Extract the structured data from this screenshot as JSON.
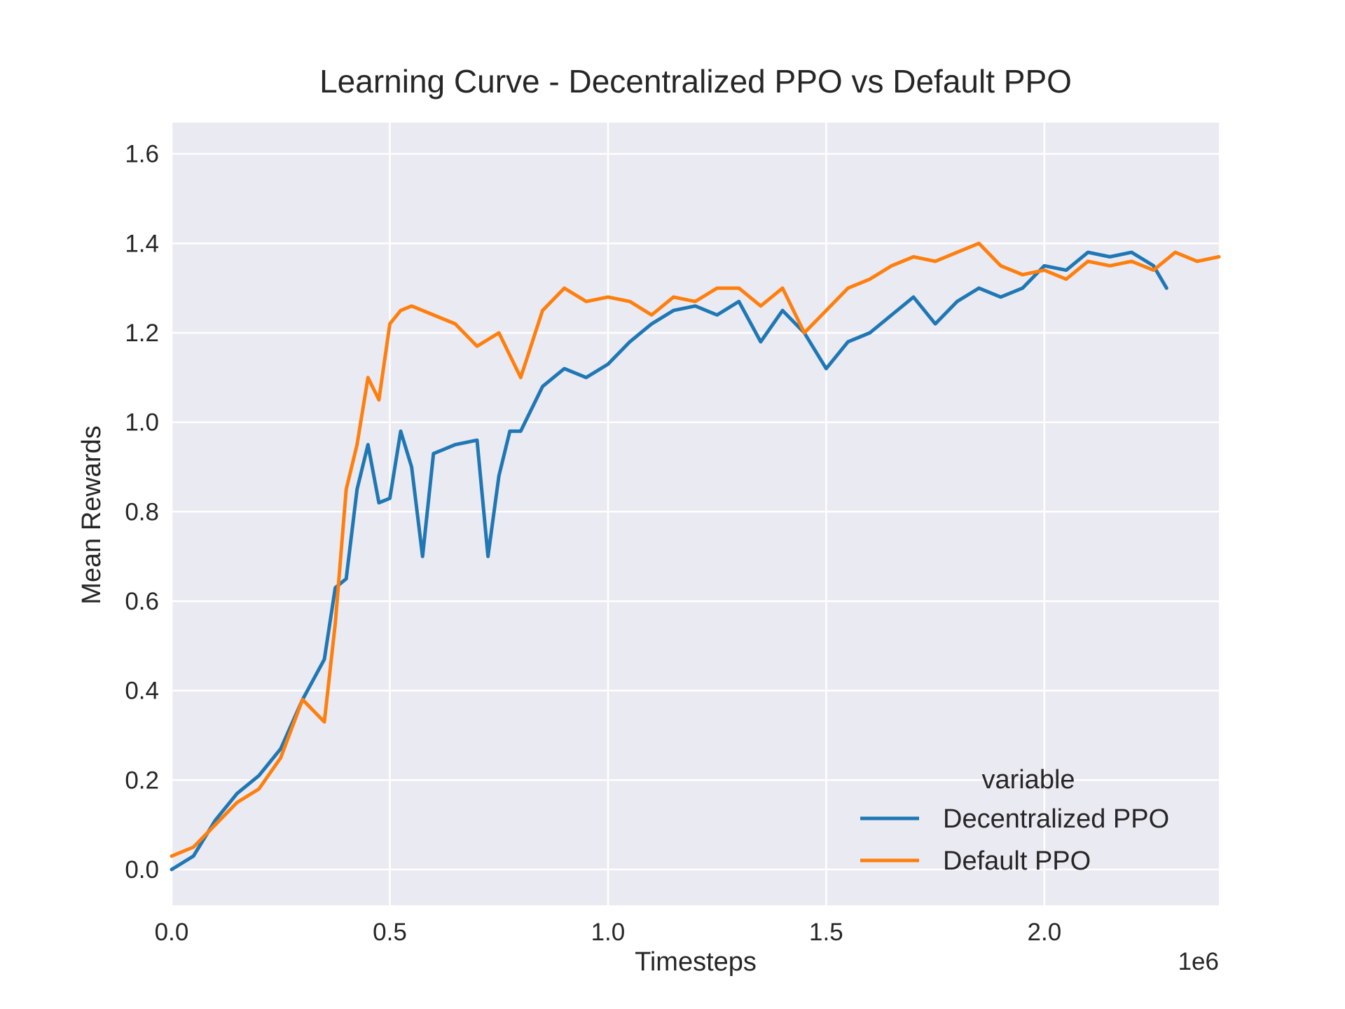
{
  "chart_data": {
    "type": "line",
    "title": "Learning Curve - Decentralized PPO vs Default PPO",
    "xlabel": "Timesteps",
    "ylabel": "Mean Rewards",
    "x_offset_label": "1e6",
    "x_scale": 1000000,
    "xlim": [
      0,
      2400000
    ],
    "ylim": [
      -0.08,
      1.67
    ],
    "x_ticks": [
      0,
      500000,
      1000000,
      1500000,
      2000000
    ],
    "x_tick_labels": [
      "0.0",
      "0.5",
      "1.0",
      "1.5",
      "2.0"
    ],
    "y_ticks": [
      0.0,
      0.2,
      0.4,
      0.6,
      0.8,
      1.0,
      1.2,
      1.4,
      1.6
    ],
    "y_tick_labels": [
      "0.0",
      "0.2",
      "0.4",
      "0.6",
      "0.8",
      "1.0",
      "1.2",
      "1.4",
      "1.6"
    ],
    "grid": true,
    "legend": {
      "title": "variable",
      "placement": "lower-right"
    },
    "colors": {
      "background": "#eaeaf2",
      "grid": "#ffffff"
    },
    "series": [
      {
        "name": "Decentralized PPO",
        "color": "#1f77b4",
        "x": [
          0,
          50000,
          100000,
          150000,
          200000,
          250000,
          300000,
          350000,
          375000,
          400000,
          425000,
          450000,
          475000,
          500000,
          525000,
          550000,
          575000,
          600000,
          650000,
          700000,
          725000,
          750000,
          775000,
          800000,
          850000,
          900000,
          950000,
          1000000,
          1050000,
          1100000,
          1150000,
          1200000,
          1250000,
          1300000,
          1350000,
          1400000,
          1450000,
          1500000,
          1550000,
          1600000,
          1650000,
          1700000,
          1750000,
          1800000,
          1850000,
          1900000,
          1950000,
          2000000,
          2050000,
          2100000,
          2150000,
          2200000,
          2250000,
          2280000
        ],
        "y": [
          0.0,
          0.03,
          0.11,
          0.17,
          0.21,
          0.27,
          0.38,
          0.47,
          0.63,
          0.65,
          0.85,
          0.95,
          0.82,
          0.83,
          0.98,
          0.9,
          0.7,
          0.93,
          0.95,
          0.96,
          0.7,
          0.88,
          0.98,
          0.98,
          1.08,
          1.12,
          1.1,
          1.13,
          1.18,
          1.22,
          1.25,
          1.26,
          1.24,
          1.27,
          1.18,
          1.25,
          1.2,
          1.12,
          1.18,
          1.2,
          1.24,
          1.28,
          1.22,
          1.27,
          1.3,
          1.28,
          1.3,
          1.35,
          1.34,
          1.38,
          1.37,
          1.38,
          1.35,
          1.3
        ]
      },
      {
        "name": "Default PPO",
        "color": "#ff7f0e",
        "x": [
          0,
          50000,
          100000,
          150000,
          200000,
          250000,
          300000,
          350000,
          375000,
          400000,
          425000,
          450000,
          475000,
          500000,
          525000,
          550000,
          600000,
          650000,
          700000,
          750000,
          800000,
          850000,
          900000,
          950000,
          1000000,
          1050000,
          1100000,
          1150000,
          1200000,
          1250000,
          1300000,
          1350000,
          1400000,
          1450000,
          1500000,
          1550000,
          1600000,
          1650000,
          1700000,
          1750000,
          1800000,
          1850000,
          1900000,
          1950000,
          2000000,
          2050000,
          2100000,
          2150000,
          2200000,
          2250000,
          2300000,
          2350000,
          2400000
        ],
        "y": [
          0.03,
          0.05,
          0.1,
          0.15,
          0.18,
          0.25,
          0.38,
          0.33,
          0.55,
          0.85,
          0.95,
          1.1,
          1.05,
          1.22,
          1.25,
          1.26,
          1.24,
          1.22,
          1.17,
          1.2,
          1.1,
          1.25,
          1.3,
          1.27,
          1.28,
          1.27,
          1.24,
          1.28,
          1.27,
          1.3,
          1.3,
          1.26,
          1.3,
          1.2,
          1.25,
          1.3,
          1.32,
          1.35,
          1.37,
          1.36,
          1.38,
          1.4,
          1.35,
          1.33,
          1.34,
          1.32,
          1.36,
          1.35,
          1.36,
          1.34,
          1.38,
          1.36,
          1.37
        ]
      }
    ]
  }
}
